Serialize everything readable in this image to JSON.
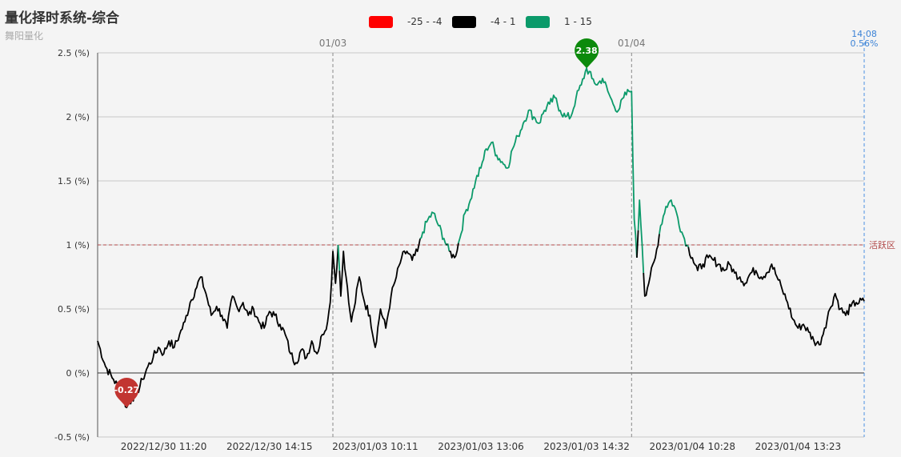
{
  "page": {
    "title": "量化择时系统-综合",
    "subtitle": "舞阳量化"
  },
  "legend": [
    {
      "label": "-25 - -4",
      "color": "#ff0000"
    },
    {
      "label": "-4 - 1",
      "color": "#000000"
    },
    {
      "label": "1 - 15",
      "color": "#0b9a6a"
    }
  ],
  "chart_data": {
    "type": "line",
    "title": "量化择时系统-综合",
    "subtitle": "舞阳量化",
    "ylim": [
      -0.5,
      2.5
    ],
    "y_ticks": [
      "-0.5 (%)",
      "0 (%)",
      "0.5 (%)",
      "1 (%)",
      "1.5 (%)",
      "2 (%)",
      "2.5 (%)"
    ],
    "y_tick_values": [
      -0.5,
      0,
      0.5,
      1,
      1.5,
      2,
      2.5
    ],
    "x_tick_labels": [
      "2022/12/30 11:20",
      "2022/12/30 14:15",
      "2023/01/03 10:11",
      "2023/01/03 13:06",
      "2023/01/03 14:32",
      "2023/01/04 10:28",
      "2023/01/04 13:23"
    ],
    "x_tick_index": [
      25,
      65,
      105,
      145,
      185,
      225,
      265
    ],
    "total_points": 290,
    "day_markers": [
      {
        "label": "01/03",
        "index": 89
      },
      {
        "label": "01/04",
        "index": 202
      }
    ],
    "last_marker": {
      "index": 290,
      "time": "14:08",
      "value": "0.56%"
    },
    "mark_line": {
      "value": 1,
      "label": "活跃区",
      "color": "#b24a4a"
    },
    "color_ranges": [
      {
        "min": -25,
        "max": -4,
        "color": "#ff0000"
      },
      {
        "min": -4,
        "max": 1,
        "color": "#000000"
      },
      {
        "min": 1,
        "max": 15,
        "color": "#0b9a6a"
      }
    ],
    "mark_points": [
      {
        "label": "-0.27",
        "index": 11,
        "value": -0.27,
        "color": "#c23531"
      },
      {
        "label": "2.38",
        "index": 185,
        "value": 2.38,
        "color": "#0c8a0c"
      }
    ],
    "grid": true,
    "keyframes": [
      [
        0,
        0.25
      ],
      [
        3,
        0.05
      ],
      [
        6,
        -0.05
      ],
      [
        9,
        -0.15
      ],
      [
        11,
        -0.27
      ],
      [
        13,
        -0.2
      ],
      [
        15,
        -0.15
      ],
      [
        17,
        -0.05
      ],
      [
        19,
        0.05
      ],
      [
        21,
        0.12
      ],
      [
        23,
        0.2
      ],
      [
        25,
        0.15
      ],
      [
        27,
        0.25
      ],
      [
        29,
        0.2
      ],
      [
        31,
        0.3
      ],
      [
        33,
        0.4
      ],
      [
        35,
        0.55
      ],
      [
        37,
        0.65
      ],
      [
        39,
        0.75
      ],
      [
        41,
        0.62
      ],
      [
        43,
        0.45
      ],
      [
        45,
        0.52
      ],
      [
        47,
        0.45
      ],
      [
        49,
        0.35
      ],
      [
        51,
        0.6
      ],
      [
        53,
        0.5
      ],
      [
        55,
        0.55
      ],
      [
        57,
        0.45
      ],
      [
        59,
        0.5
      ],
      [
        61,
        0.4
      ],
      [
        63,
        0.35
      ],
      [
        65,
        0.48
      ],
      [
        67,
        0.45
      ],
      [
        69,
        0.38
      ],
      [
        71,
        0.3
      ],
      [
        73,
        0.15
      ],
      [
        75,
        0.08
      ],
      [
        77,
        0.18
      ],
      [
        79,
        0.12
      ],
      [
        81,
        0.25
      ],
      [
        83,
        0.15
      ],
      [
        85,
        0.3
      ],
      [
        87,
        0.4
      ],
      [
        88,
        0.55
      ],
      [
        89,
        0.95
      ],
      [
        90,
        0.7
      ],
      [
        91,
        1.0
      ],
      [
        92,
        0.6
      ],
      [
        93,
        0.95
      ],
      [
        94,
        0.75
      ],
      [
        95,
        0.55
      ],
      [
        96,
        0.4
      ],
      [
        97,
        0.5
      ],
      [
        99,
        0.75
      ],
      [
        101,
        0.55
      ],
      [
        103,
        0.45
      ],
      [
        105,
        0.2
      ],
      [
        107,
        0.5
      ],
      [
        109,
        0.35
      ],
      [
        111,
        0.6
      ],
      [
        113,
        0.75
      ],
      [
        115,
        0.9
      ],
      [
        117,
        0.95
      ],
      [
        119,
        0.88
      ],
      [
        121,
        0.95
      ],
      [
        123,
        1.1
      ],
      [
        125,
        1.2
      ],
      [
        127,
        1.25
      ],
      [
        129,
        1.15
      ],
      [
        131,
        1.05
      ],
      [
        133,
        0.95
      ],
      [
        135,
        0.9
      ],
      [
        137,
        1.05
      ],
      [
        139,
        1.25
      ],
      [
        141,
        1.35
      ],
      [
        143,
        1.5
      ],
      [
        145,
        1.6
      ],
      [
        147,
        1.75
      ],
      [
        149,
        1.8
      ],
      [
        151,
        1.7
      ],
      [
        153,
        1.65
      ],
      [
        155,
        1.6
      ],
      [
        157,
        1.75
      ],
      [
        159,
        1.85
      ],
      [
        161,
        1.95
      ],
      [
        163,
        2.05
      ],
      [
        165,
        2.0
      ],
      [
        167,
        1.95
      ],
      [
        169,
        2.05
      ],
      [
        171,
        2.1
      ],
      [
        173,
        2.15
      ],
      [
        175,
        2.05
      ],
      [
        177,
        2.0
      ],
      [
        179,
        2.0
      ],
      [
        181,
        2.15
      ],
      [
        183,
        2.25
      ],
      [
        185,
        2.38
      ],
      [
        187,
        2.3
      ],
      [
        189,
        2.25
      ],
      [
        191,
        2.3
      ],
      [
        193,
        2.2
      ],
      [
        195,
        2.1
      ],
      [
        197,
        2.05
      ],
      [
        199,
        2.15
      ],
      [
        201,
        2.2
      ],
      [
        202,
        2.2
      ],
      [
        203,
        1.2
      ],
      [
        204,
        0.9
      ],
      [
        205,
        1.35
      ],
      [
        206,
        1.0
      ],
      [
        207,
        0.6
      ],
      [
        209,
        0.75
      ],
      [
        211,
        0.9
      ],
      [
        213,
        1.15
      ],
      [
        215,
        1.3
      ],
      [
        217,
        1.35
      ],
      [
        219,
        1.25
      ],
      [
        221,
        1.1
      ],
      [
        223,
        1.0
      ],
      [
        225,
        0.9
      ],
      [
        227,
        0.8
      ],
      [
        229,
        0.85
      ],
      [
        231,
        0.9
      ],
      [
        233,
        0.88
      ],
      [
        235,
        0.85
      ],
      [
        237,
        0.8
      ],
      [
        239,
        0.85
      ],
      [
        241,
        0.78
      ],
      [
        243,
        0.75
      ],
      [
        245,
        0.7
      ],
      [
        247,
        0.78
      ],
      [
        249,
        0.8
      ],
      [
        251,
        0.75
      ],
      [
        253,
        0.78
      ],
      [
        255,
        0.85
      ],
      [
        257,
        0.75
      ],
      [
        259,
        0.65
      ],
      [
        261,
        0.55
      ],
      [
        263,
        0.42
      ],
      [
        265,
        0.35
      ],
      [
        267,
        0.38
      ],
      [
        269,
        0.32
      ],
      [
        271,
        0.25
      ],
      [
        273,
        0.22
      ],
      [
        275,
        0.35
      ],
      [
        277,
        0.5
      ],
      [
        279,
        0.62
      ],
      [
        281,
        0.5
      ],
      [
        283,
        0.45
      ],
      [
        285,
        0.52
      ],
      [
        287,
        0.55
      ],
      [
        290,
        0.56
      ]
    ]
  }
}
